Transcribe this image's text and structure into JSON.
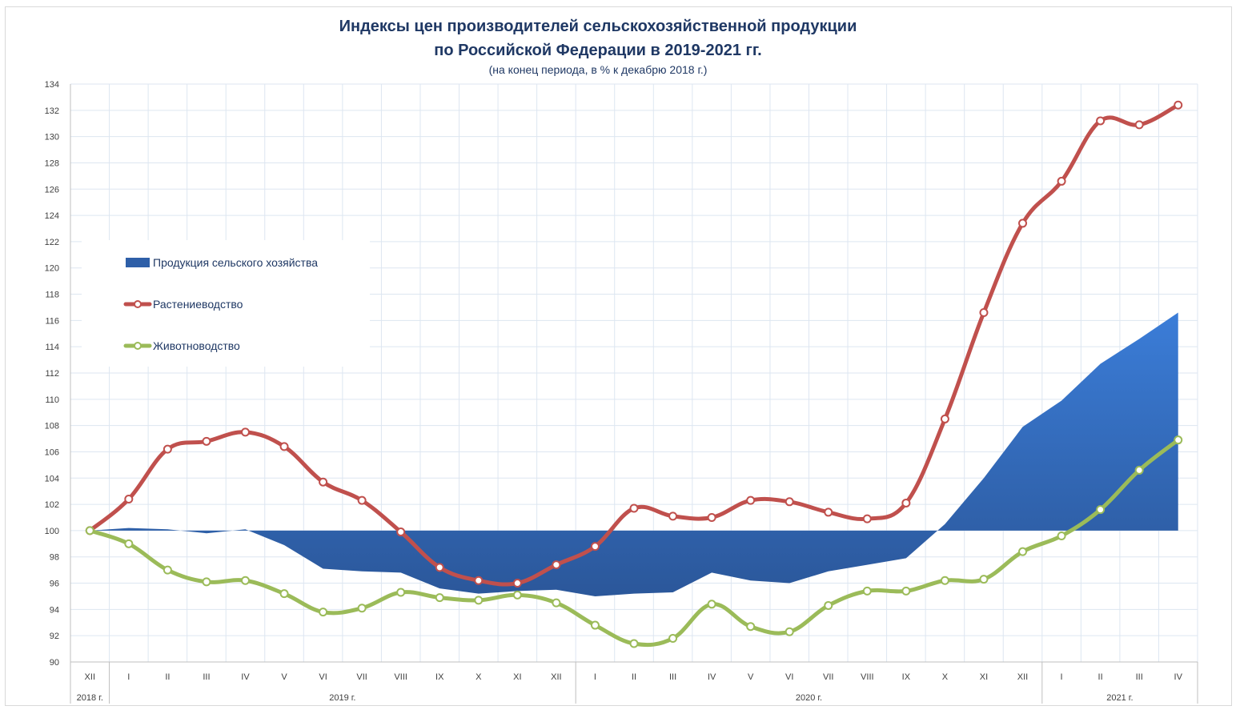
{
  "chart_data": {
    "type": "line",
    "title": "Индексы цен производителей сельскохозяйственной продукции",
    "title_line2": "по Российской Федерации в 2019-2021 гг.",
    "subtitle": "(на конец периода, в % к декабрю 2018 г.)",
    "categories": [
      "XII",
      "I",
      "II",
      "III",
      "IV",
      "V",
      "VI",
      "VII",
      "VIII",
      "IX",
      "X",
      "XI",
      "XII",
      "I",
      "II",
      "III",
      "IV",
      "V",
      "VI",
      "VII",
      "VIII",
      "IX",
      "X",
      "XI",
      "XII",
      "I",
      "II",
      "III",
      "IV"
    ],
    "year_groups": [
      {
        "label": "2018 г.",
        "span": 1
      },
      {
        "label": "2019 г.",
        "span": 12
      },
      {
        "label": "2020 г.",
        "span": 12
      },
      {
        "label": "2021 г.",
        "span": 4
      }
    ],
    "ylim": [
      90,
      134
    ],
    "ytick_step": 2,
    "baseline": 100,
    "series": [
      {
        "name": "Продукция сельского хозяйства",
        "kind": "area",
        "color": "#2e5fa8",
        "values": [
          100.0,
          100.2,
          100.1,
          99.8,
          100.1,
          98.9,
          97.1,
          96.9,
          96.8,
          95.6,
          95.2,
          95.4,
          95.5,
          95.0,
          95.2,
          95.3,
          96.8,
          96.2,
          96.0,
          96.9,
          97.4,
          97.9,
          100.5,
          104.0,
          107.9,
          109.9,
          112.7,
          114.6,
          116.6
        ]
      },
      {
        "name": "Растениеводство",
        "kind": "line",
        "color": "#c0504d",
        "values": [
          100.0,
          102.4,
          106.2,
          106.8,
          107.5,
          106.4,
          103.7,
          102.3,
          99.9,
          97.2,
          96.2,
          96.0,
          97.4,
          98.8,
          101.7,
          101.1,
          101.0,
          102.3,
          102.2,
          101.4,
          100.9,
          102.1,
          108.5,
          116.6,
          123.4,
          126.6,
          131.2,
          130.9,
          132.4
        ]
      },
      {
        "name": "Животноводство",
        "kind": "line",
        "color": "#9bbb59",
        "values": [
          100.0,
          99.0,
          97.0,
          96.1,
          96.2,
          95.2,
          93.8,
          94.1,
          95.3,
          94.9,
          94.7,
          95.1,
          94.5,
          92.8,
          91.4,
          91.8,
          94.4,
          92.7,
          92.3,
          94.3,
          95.4,
          95.4,
          96.2,
          96.3,
          98.4,
          99.6,
          101.6,
          104.6,
          106.9
        ]
      }
    ],
    "legend_position": "left",
    "grid": true
  }
}
